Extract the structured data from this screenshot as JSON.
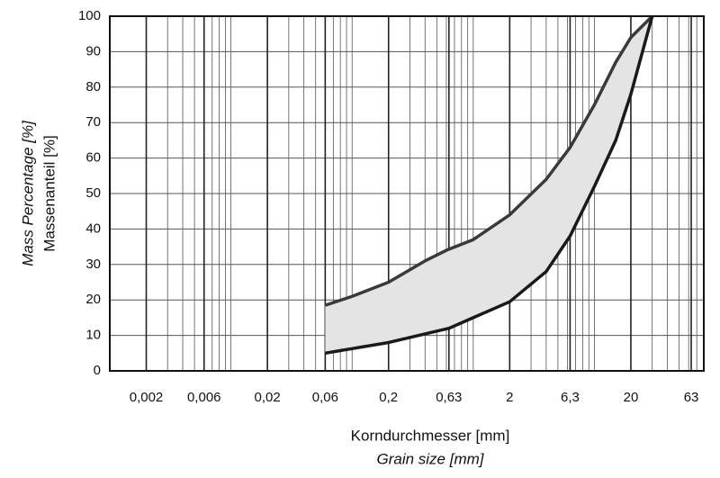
{
  "chart_data": {
    "type": "line",
    "log_x": true,
    "grid": true,
    "y_label": "Massenanteil [%]",
    "y_label_2": "Mass Percentage [%]",
    "x_label": "Korndurchmesser [mm]",
    "x_label_2": "Grain size [mm]",
    "xlim": [
      0.001,
      80
    ],
    "ylim": [
      0,
      100
    ],
    "yticks": [
      0,
      10,
      20,
      30,
      40,
      50,
      60,
      70,
      80,
      90,
      100
    ],
    "xticks": [
      {
        "value": 0.002,
        "label": "0,002"
      },
      {
        "value": 0.006,
        "label": "0,006"
      },
      {
        "value": 0.02,
        "label": "0,02"
      },
      {
        "value": 0.06,
        "label": "0,06"
      },
      {
        "value": 0.2,
        "label": "0,2"
      },
      {
        "value": 0.63,
        "label": "0,63"
      },
      2,
      {
        "value": 6.3,
        "label": "6,3"
      },
      20,
      63
    ],
    "x_minor_grid": [
      0.001,
      0.002,
      0.003,
      0.004,
      0.005,
      0.006,
      0.007,
      0.008,
      0.009,
      0.01,
      0.02,
      0.03,
      0.04,
      0.05,
      0.06,
      0.07,
      0.08,
      0.09,
      0.1,
      0.2,
      0.3,
      0.4,
      0.5,
      0.6,
      0.7,
      0.8,
      0.9,
      1,
      2,
      3,
      4,
      5,
      6,
      7,
      8,
      9,
      10,
      20,
      30,
      40,
      50,
      60,
      70,
      80
    ],
    "fill_between": true,
    "fill_color": "#e4e4e4",
    "series": [
      {
        "color": "#3a3a3a",
        "x": [
          0.06,
          0.1,
          0.2,
          0.4,
          0.6,
          1,
          2,
          4,
          6.3,
          10,
          15,
          20,
          30
        ],
        "values": [
          18.5,
          21,
          25,
          31,
          34,
          37,
          44,
          54,
          63,
          75,
          87,
          94,
          100
        ]
      },
      {
        "color": "#1a1a1a",
        "x": [
          0.06,
          0.2,
          0.63,
          2,
          4,
          6.3,
          10,
          15,
          20,
          30
        ],
        "values": [
          5,
          8,
          12,
          19.5,
          28,
          38,
          52,
          65,
          78,
          100
        ]
      }
    ]
  }
}
